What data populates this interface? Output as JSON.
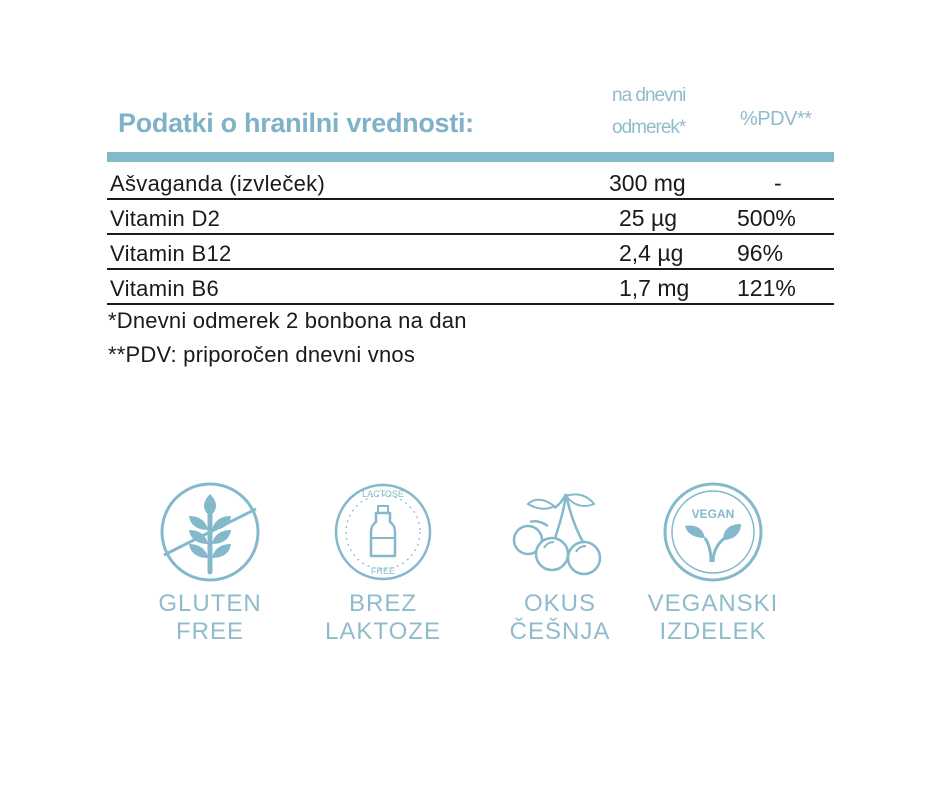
{
  "table": {
    "title": "Podatki o hranilni vrednosti:",
    "col_amount_line1": "na dnevni",
    "col_amount_line2": "odmerek*",
    "col_pdv": "%PDV**",
    "rows": [
      {
        "name": "Ašvaganda (izvleček)",
        "amount": "300 mg",
        "pdv": "-"
      },
      {
        "name": "Vitamin D2",
        "amount": "25 µg",
        "pdv": "500%"
      },
      {
        "name": "Vitamin B12",
        "amount": "2,4 µg",
        "pdv": "96%"
      },
      {
        "name": "Vitamin B6",
        "amount": "1,7 mg",
        "pdv": "121%"
      }
    ]
  },
  "footnotes": {
    "daily_dose": "*Dnevni odmerek 2 bonbona na dan",
    "pdv": "**PDV: priporočen dnevni vnos"
  },
  "badges": [
    {
      "icon": "wheat-crossed-icon",
      "line1": "GLUTEN",
      "line2": "FREE"
    },
    {
      "icon": "lactose-free-bottle-icon",
      "line1": "BREZ",
      "line2": "LAKTOZE",
      "ring_top": "LACTOSE",
      "ring_bottom": "FREE"
    },
    {
      "icon": "cherry-icon",
      "line1": "OKUS",
      "line2": "ČEŠNJA"
    },
    {
      "icon": "vegan-leaf-icon",
      "line1": "VEGANSKI",
      "line2": "IZDELEK",
      "ring_text": "VEGAN"
    }
  ],
  "colors": {
    "accent": "#84b9cc",
    "text": "#1a1a1a"
  }
}
